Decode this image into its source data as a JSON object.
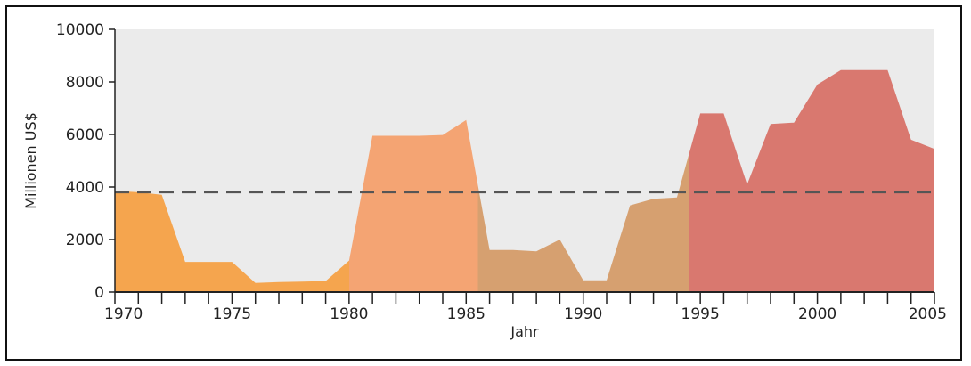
{
  "chart_data": {
    "type": "area",
    "title": "",
    "xlabel": "Jahr",
    "ylabel": "Millionen US$",
    "xlim": [
      1970,
      2005
    ],
    "ylim": [
      0,
      10000
    ],
    "x_ticks": [
      "1970",
      "1975",
      "1980",
      "1985",
      "1990",
      "1995",
      "2000",
      "2005"
    ],
    "y_ticks": [
      "0",
      "2000",
      "4000",
      "6000",
      "8000",
      "10000"
    ],
    "grid": false,
    "background": "#ebebeb",
    "series": [
      {
        "x": [
          1970,
          1971,
          1972,
          1973,
          1974,
          1975,
          1976,
          1977,
          1978,
          1979,
          1980,
          1981,
          1982,
          1983,
          1984,
          1985,
          1986,
          1987,
          1988,
          1989,
          1990,
          1991,
          1992,
          1993,
          1994,
          1995,
          1996,
          1997,
          1998,
          1999,
          2000,
          2001,
          2002,
          2003,
          2004,
          2005
        ],
        "values": [
          3850,
          3800,
          3700,
          1150,
          1150,
          1150,
          350,
          380,
          400,
          420,
          1200,
          5950,
          5950,
          5950,
          5980,
          6550,
          1600,
          1600,
          1550,
          2000,
          450,
          450,
          3300,
          3550,
          3600,
          6800,
          6800,
          4100,
          6400,
          6450,
          7900,
          8450,
          8450,
          8450,
          5800,
          5450
        ]
      }
    ],
    "average_line": {
      "value": 3800,
      "style": "dashed",
      "color": "#555555"
    },
    "color_bands": [
      {
        "from": 1970,
        "to": 1980,
        "color": "#f5a54e"
      },
      {
        "from": 1980,
        "to": 1985.5,
        "color": "#f4a473"
      },
      {
        "from": 1985.5,
        "to": 1994.5,
        "color": "#d6a070"
      },
      {
        "from": 1994.5,
        "to": 2005,
        "color": "#d9786f"
      }
    ]
  }
}
